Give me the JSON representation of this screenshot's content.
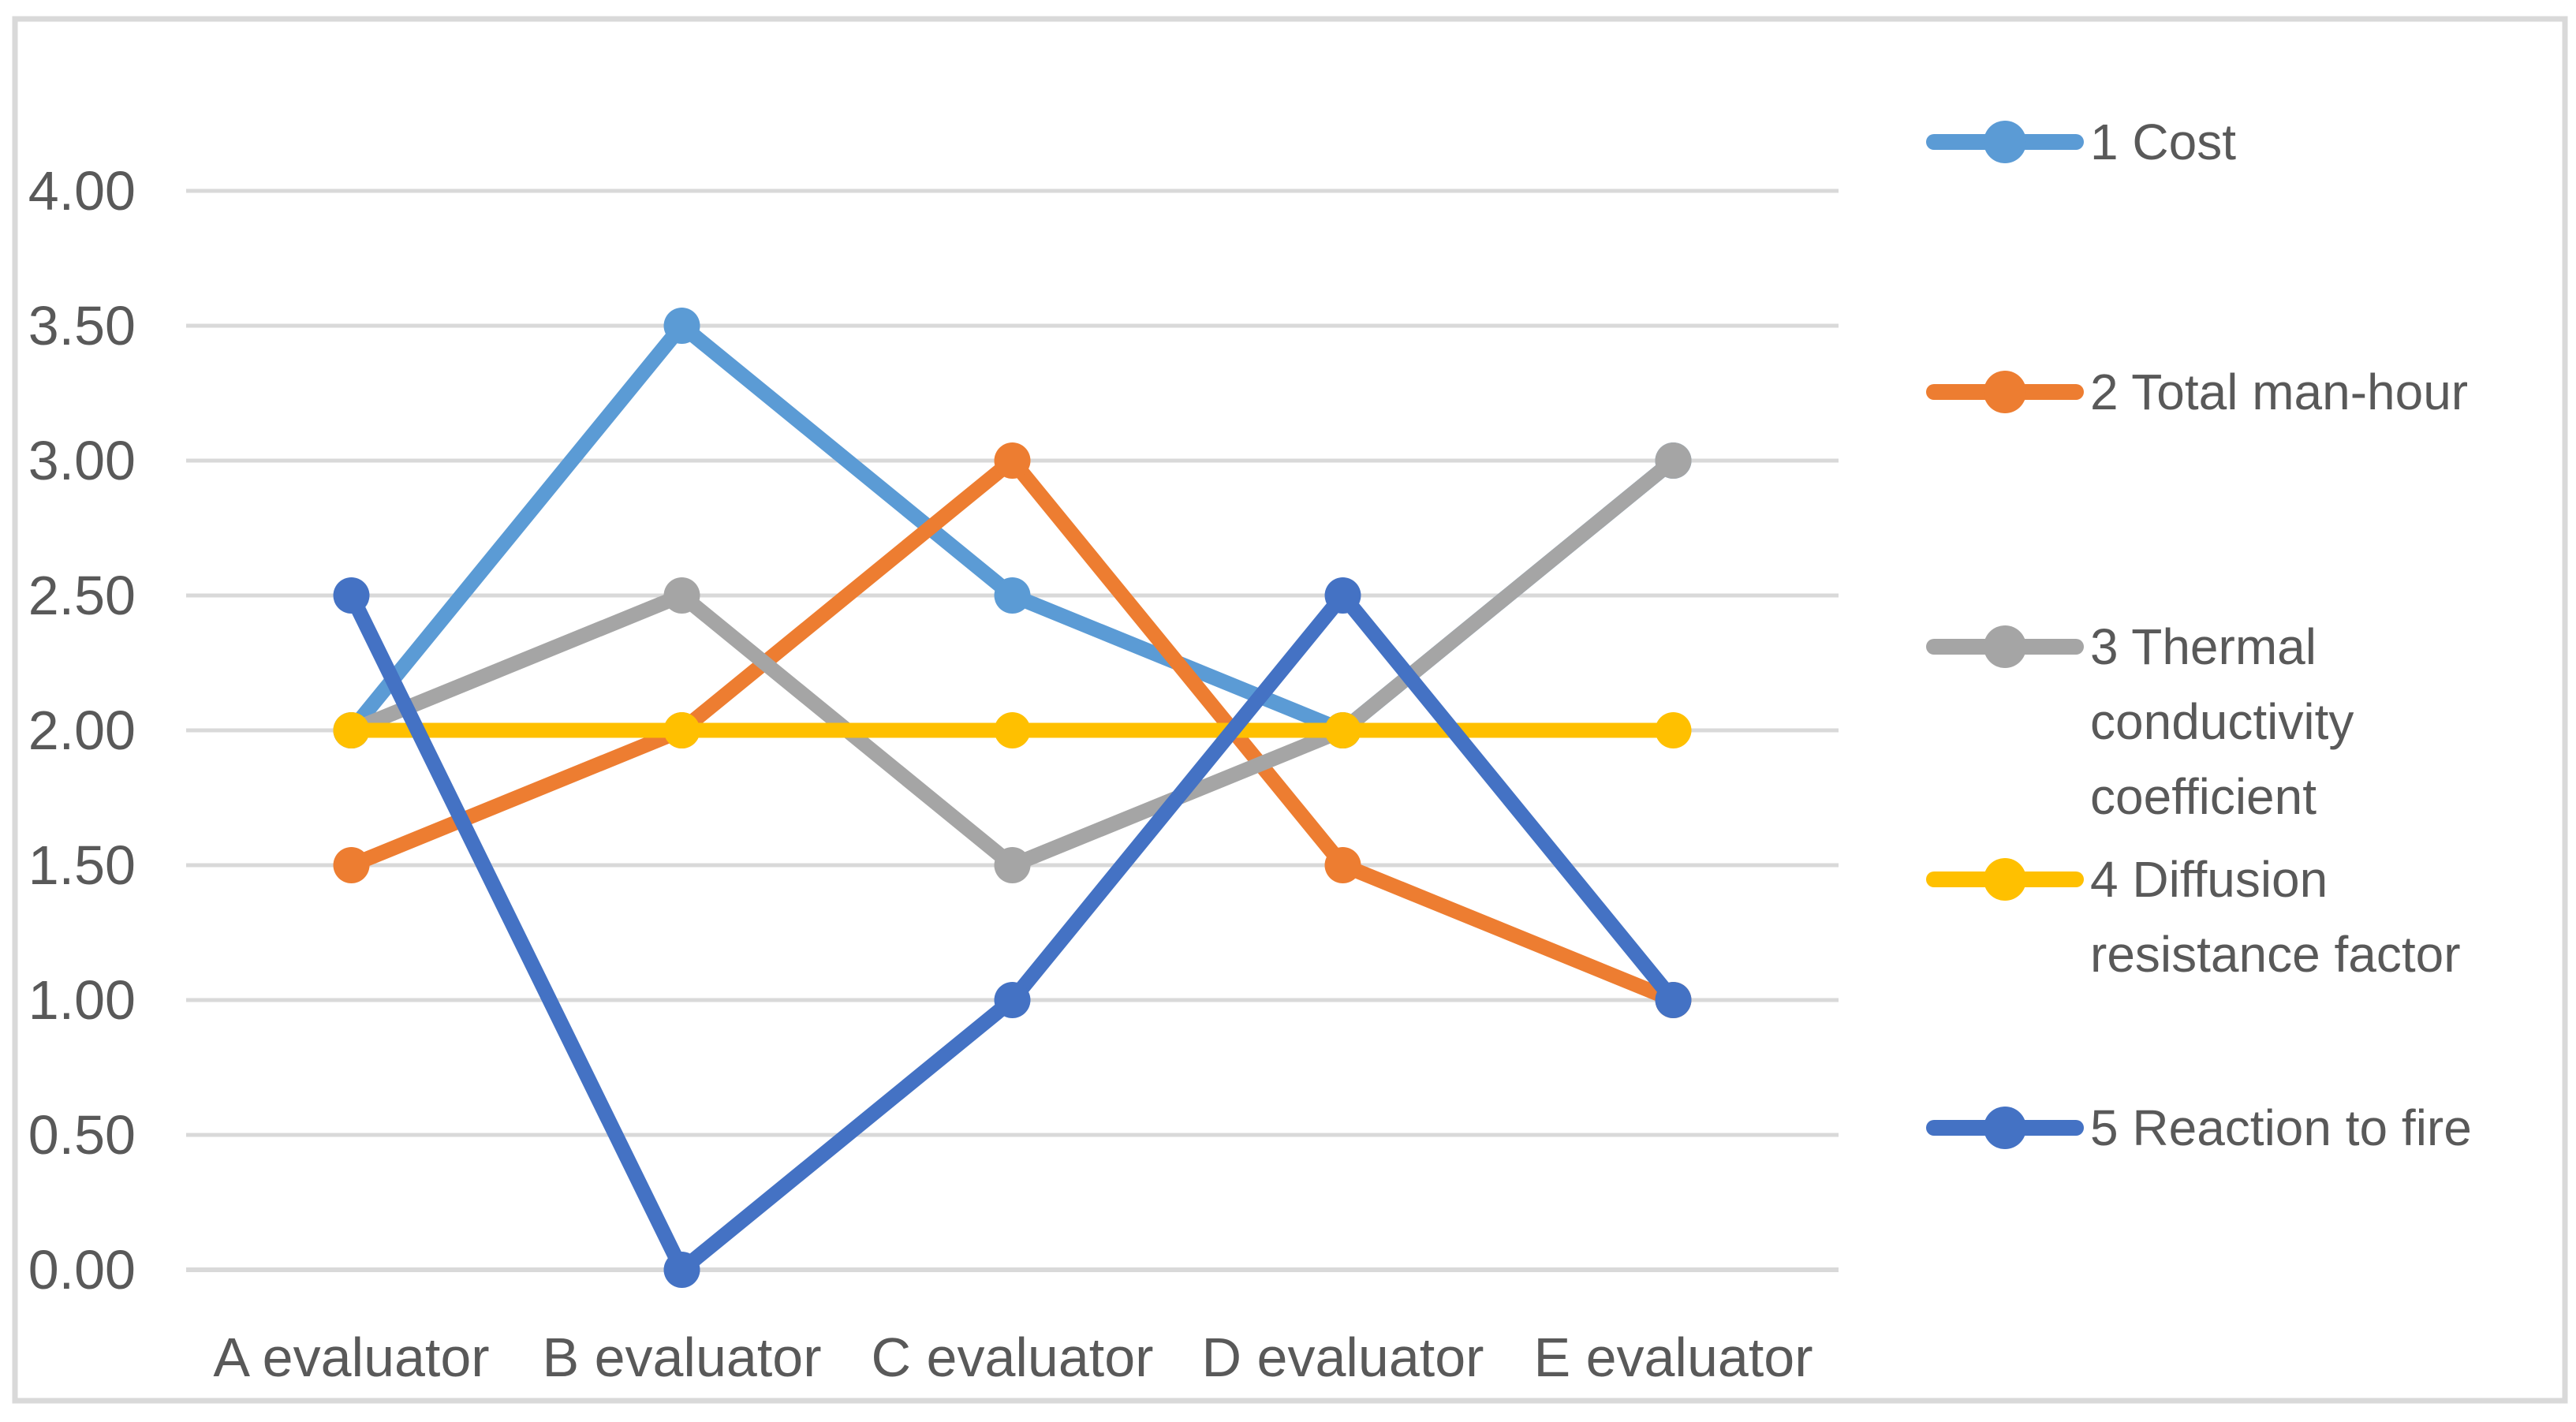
{
  "chart_data": {
    "type": "line",
    "title": "",
    "xlabel": "",
    "ylabel": "",
    "categories": [
      "A evaluator",
      "B evaluator",
      "C evaluator",
      "D evaluator",
      "E evaluator"
    ],
    "series": [
      {
        "name": "1  Cost",
        "legend_lines": [
          "1  Cost"
        ],
        "color": "#5B9BD5",
        "values": [
          2.0,
          3.5,
          2.5,
          2.0,
          3.0
        ]
      },
      {
        "name": " 2 Total man-hour",
        "legend_lines": [
          " 2 Total man-hour"
        ],
        "color": "#ED7D31",
        "values": [
          1.5,
          2.0,
          3.0,
          1.5,
          1.0
        ]
      },
      {
        "name": "3 Thermal conductivity coefficient",
        "legend_lines": [
          "3 Thermal",
          "conductivity",
          "coefficient"
        ],
        "color": "#A5A5A5",
        "values": [
          2.0,
          2.5,
          1.5,
          2.0,
          3.0
        ]
      },
      {
        "name": "4 Diffusion resistance factor",
        "legend_lines": [
          "4 Diffusion",
          "resistance factor"
        ],
        "color": "#FFC000",
        "values": [
          2.0,
          2.0,
          2.0,
          2.0,
          2.0
        ]
      },
      {
        "name": "5 Reaction to fire",
        "legend_lines": [
          "5 Reaction to fire"
        ],
        "color": "#4472C4",
        "values": [
          2.5,
          0.0,
          1.0,
          2.5,
          1.0
        ]
      }
    ],
    "y_ticks": [
      "0.00",
      "0.50",
      "1.00",
      "1.50",
      "2.00",
      "2.50",
      "3.00",
      "3.50",
      "4.00"
    ],
    "ylim": [
      0.0,
      4.0
    ],
    "y_step": 0.5,
    "grid": true,
    "legend_position": "right",
    "marker": "circle"
  },
  "colors": {
    "background": "#FFFFFF",
    "border": "#D9D9D9",
    "gridline": "#D9D9D9",
    "axis_line": "#D9D9D9",
    "axis_text": "#595959",
    "legend_text": "#595959"
  }
}
